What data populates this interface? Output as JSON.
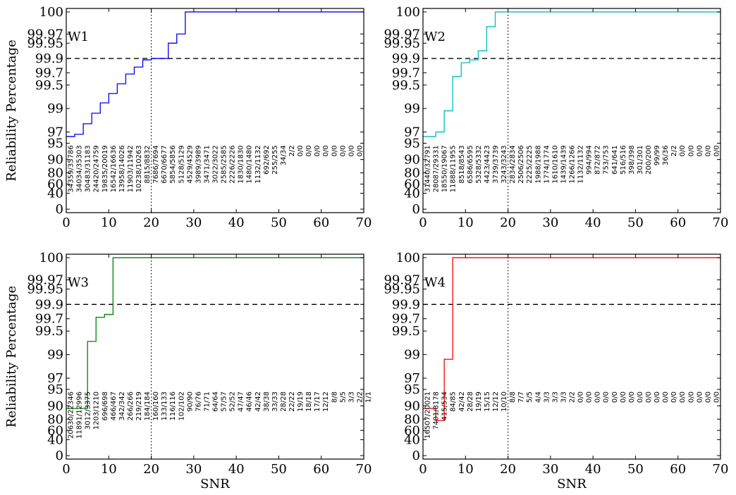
{
  "chart_data": {
    "type": "line",
    "shared": {
      "xlabel": "SNR",
      "ylabel": "Reliability Percentage",
      "xlim": [
        0,
        70
      ],
      "xticks": [
        0,
        10,
        20,
        30,
        40,
        50,
        60,
        70
      ],
      "yticks": [
        0,
        40,
        60,
        80,
        90,
        95,
        97,
        99,
        99.5,
        99.7,
        99.9,
        99.95,
        99.97,
        100
      ],
      "ytick_labels": [
        "0",
        "40",
        "60",
        "80",
        "90",
        "95",
        "97",
        "99",
        "99.5",
        "99.7",
        "99.9",
        "99.95",
        "99.97",
        "100"
      ],
      "threshold_y": 99.9,
      "threshold_style": "dashed",
      "marker_x": 20,
      "marker_style": "dotted",
      "step_style": "post"
    },
    "panels": [
      {
        "title": "W1",
        "color": "#0000ff",
        "x": [
          0,
          1,
          2,
          3,
          4,
          5,
          6,
          7,
          8,
          9,
          10,
          11,
          12,
          13,
          14,
          15,
          16,
          17,
          18,
          19,
          20,
          21,
          22,
          23,
          24,
          25,
          26,
          27,
          28,
          29,
          30,
          31,
          32,
          33,
          34,
          35,
          36,
          37,
          38,
          39,
          40,
          41,
          42,
          43,
          44,
          45,
          46,
          47,
          48,
          49,
          50,
          51,
          52,
          53,
          54,
          55,
          56,
          57,
          58,
          59,
          60,
          61,
          62,
          63,
          64,
          65,
          66,
          67,
          68,
          69,
          70
        ],
        "y": [
          96.2,
          96.2,
          96.6,
          96.6,
          97.7,
          97.7,
          98.6,
          98.6,
          99.12,
          99.12,
          99.32,
          99.32,
          99.52,
          99.52,
          99.68,
          99.68,
          99.78,
          99.78,
          99.88,
          99.88,
          99.9,
          99.9,
          99.9,
          99.9,
          99.95,
          99.95,
          99.97,
          99.97,
          100,
          100,
          100,
          100,
          100,
          100,
          100,
          100,
          100,
          100,
          100,
          100,
          100,
          100,
          100,
          100,
          100,
          100,
          100,
          100,
          100,
          100,
          100,
          100,
          100,
          100,
          100,
          100,
          100,
          100,
          100,
          100,
          100,
          100,
          100,
          100,
          100,
          100,
          100,
          100,
          100,
          100,
          100
        ],
        "count_labels": [
          "34359/35786",
          "34034/35303",
          "30483/31183",
          "24420/24759",
          "19835/20019",
          "16542/16636",
          "13958/14026",
          "11903/11942",
          "10238/10263",
          "8815/8832",
          "7686/7694",
          "6670/6677",
          "5854/5856",
          "5128/5129",
          "4529/4529",
          "3989/3989",
          "3471/3471",
          "3022/3022",
          "2585/2585",
          "2226/2226",
          "1830/1830",
          "1480/1480",
          "1132/1132",
          "692/692",
          "255/255",
          "34/34",
          "2/2",
          "0/0",
          "0/0",
          "0/0",
          "0/0",
          "0/0",
          "0/0",
          "0/0",
          "0/0"
        ]
      },
      {
        "title": "W2",
        "color": "#00bfbf",
        "x": [
          0,
          1,
          2,
          3,
          4,
          5,
          6,
          7,
          8,
          9,
          10,
          11,
          12,
          13,
          14,
          15,
          16,
          17,
          18,
          19,
          20,
          21,
          22,
          23,
          24,
          25,
          26,
          27,
          28,
          29,
          30,
          31,
          32,
          33,
          34,
          35,
          36,
          37,
          38,
          39,
          40,
          41,
          42,
          43,
          44,
          45,
          46,
          47,
          48,
          49,
          50,
          51,
          52,
          53,
          54,
          55,
          56,
          57,
          58,
          59,
          60,
          61,
          62,
          63,
          64,
          65,
          66,
          67,
          68,
          69,
          70
        ],
        "y": [
          96.2,
          96.2,
          96.2,
          97.0,
          97.0,
          98.8,
          98.8,
          99.64,
          99.64,
          99.84,
          99.84,
          99.88,
          99.88,
          99.925,
          99.925,
          99.98,
          99.98,
          100,
          100,
          100,
          100,
          100,
          100,
          100,
          100,
          100,
          100,
          100,
          100,
          100,
          100,
          100,
          100,
          100,
          100,
          100,
          100,
          100,
          100,
          100,
          100,
          100,
          100,
          100,
          100,
          100,
          100,
          100,
          100,
          100,
          100,
          100,
          100,
          100,
          100,
          100,
          100,
          100,
          100,
          100,
          100,
          100,
          100,
          100,
          100,
          100,
          100,
          100,
          100,
          100,
          100
        ],
        "count_labels": [
          "31440/32791",
          "28087/29331",
          "18550/19067",
          "11888/11955",
          "8518/8543",
          "6586/6595",
          "5328/5332",
          "4423/4423",
          "3739/3739",
          "3243/3243",
          "2834/2834",
          "2506/2506",
          "2225/2225",
          "1988/1988",
          "1774/1774",
          "1610/1610",
          "1439/1439",
          "1266/1266",
          "1132/1132",
          "994/994",
          "872/872",
          "753/753",
          "641/641",
          "516/516",
          "398/398",
          "301/301",
          "200/200",
          "99/99",
          "36/36",
          "2/2",
          "0/0",
          "0/0",
          "0/0",
          "0/0",
          "0/0"
        ]
      },
      {
        "title": "W3",
        "color": "#008000",
        "x": [
          0,
          1,
          2,
          3,
          4,
          5,
          6,
          7,
          8,
          9,
          10,
          11,
          12,
          13,
          14,
          15,
          16,
          17,
          18,
          19,
          20,
          21,
          22,
          23,
          24,
          25,
          26,
          27,
          28,
          29,
          30,
          31,
          32,
          33,
          34,
          35,
          36,
          37,
          38,
          39,
          40,
          41,
          42,
          43,
          44,
          45,
          46,
          47,
          48,
          49,
          50,
          51,
          52,
          53,
          54,
          55,
          56,
          57,
          58,
          59,
          60,
          61,
          62,
          63,
          64,
          65,
          66,
          67,
          68,
          69,
          70
        ],
        "y": [
          88,
          88,
          88,
          88,
          88,
          99.28,
          99.28,
          99.72,
          99.72,
          99.76,
          99.76,
          100,
          100,
          100,
          100,
          100,
          100,
          100,
          100,
          100,
          100,
          100,
          100,
          100,
          100,
          100,
          100,
          100,
          100,
          100,
          100,
          100,
          100,
          100,
          100,
          100,
          100,
          100,
          100,
          100,
          100,
          100,
          100,
          100,
          100,
          100,
          100,
          100,
          100,
          100,
          100,
          100,
          100,
          100,
          100,
          100,
          100,
          100,
          100,
          100,
          100,
          100,
          100,
          100,
          100,
          100,
          100,
          100,
          100,
          100,
          100
        ],
        "count_labels": [
          "20630/22346",
          "11891/12996",
          "3012/3375",
          "1203/1210",
          "696/698",
          "466/467",
          "342/342",
          "266/266",
          "219/219",
          "184/184",
          "160/160",
          "133/133",
          "116/116",
          "102/102",
          "90/90",
          "76/76",
          "71/71",
          "64/64",
          "57/57",
          "52/52",
          "47/47",
          "46/46",
          "42/42",
          "38/38",
          "33/33",
          "28/28",
          "22/22",
          "19/19",
          "18/18",
          "17/17",
          "12/12",
          "8/8",
          "5/5",
          "3/3",
          "2/2",
          "1/1"
        ]
      },
      {
        "title": "W4",
        "color": "#ff0000",
        "x": [
          0,
          1,
          2,
          3,
          4,
          5,
          6,
          7,
          8,
          9,
          10,
          11,
          12,
          13,
          14,
          15,
          16,
          17,
          18,
          19,
          20,
          21,
          22,
          23,
          24,
          25,
          26,
          27,
          28,
          29,
          30,
          31,
          32,
          33,
          34,
          35,
          36,
          37,
          38,
          39,
          40,
          41,
          42,
          43,
          44,
          45,
          46,
          47,
          48,
          49,
          50,
          51,
          52,
          53,
          54,
          55,
          56,
          57,
          58,
          59,
          60,
          61,
          62,
          63,
          64,
          65,
          66,
          67,
          68,
          69,
          70
        ],
        "y": [
          88,
          88,
          88,
          77.5,
          77.5,
          98.6,
          98.6,
          100,
          100,
          100,
          100,
          100,
          100,
          100,
          100,
          100,
          100,
          100,
          100,
          100,
          100,
          100,
          100,
          100,
          100,
          100,
          100,
          100,
          100,
          100,
          100,
          100,
          100,
          100,
          100,
          100,
          100,
          100,
          100,
          100,
          100,
          100,
          100,
          100,
          100,
          100,
          100,
          100,
          100,
          100,
          100,
          100,
          100,
          100,
          100,
          100,
          100,
          100,
          100,
          100,
          100,
          100,
          100,
          100,
          100,
          100,
          100,
          100,
          100,
          100,
          100
        ],
        "count_labels": [
          "16507/20021",
          "7401/8178",
          "415/534",
          "84/85",
          "42/42",
          "28/28",
          "19/19",
          "15/15",
          "12/12",
          "10/10",
          "8/8",
          "7/7",
          "5/5",
          "4/4",
          "3/3",
          "3/3",
          "3/3",
          "2/2",
          "0/0",
          "0/0",
          "0/0",
          "0/0",
          "0/0",
          "0/0",
          "0/0",
          "0/0",
          "0/0",
          "0/0",
          "0/0",
          "0/0",
          "0/0",
          "0/0",
          "0/0",
          "0/0",
          "0/0"
        ]
      }
    ]
  }
}
